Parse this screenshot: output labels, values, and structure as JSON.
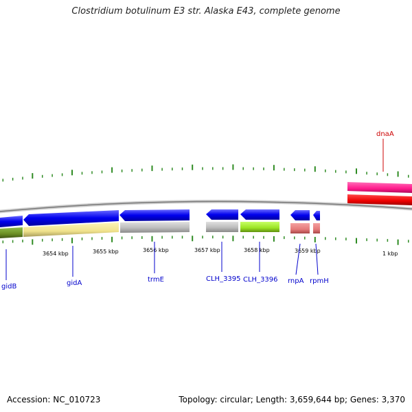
{
  "title": "Clostridium botulinum E3 str. Alaska E43, complete genome",
  "footer": {
    "accession": "Accession: NC_010723",
    "topology": "Topology: circular; Length: 3,659,644 bp; Genes: 3,370"
  },
  "colors": {
    "forward_gene": "#0000ee",
    "gene_label": "#0000cc",
    "highlight_gene_label": "#cc0000",
    "tick": "#2e8b22",
    "backbone": "#888888"
  },
  "scale_labels": [
    "3654 kbp",
    "3655 kbp",
    "3656 kbp",
    "3657 kbp",
    "3658 kbp",
    "3659 kbp",
    "1 kbp"
  ],
  "genes": [
    {
      "name": "gidB",
      "color": "#0000cc"
    },
    {
      "name": "gidA",
      "color": "#0000cc"
    },
    {
      "name": "trmE",
      "color": "#0000cc"
    },
    {
      "name": "CLH_3395",
      "color": "#0000cc"
    },
    {
      "name": "CLH_3396",
      "color": "#0000cc"
    },
    {
      "name": "rnpA",
      "color": "#0000cc"
    },
    {
      "name": "rpmH",
      "color": "#0000cc"
    },
    {
      "name": "dnaA",
      "color": "#cc0000"
    }
  ]
}
